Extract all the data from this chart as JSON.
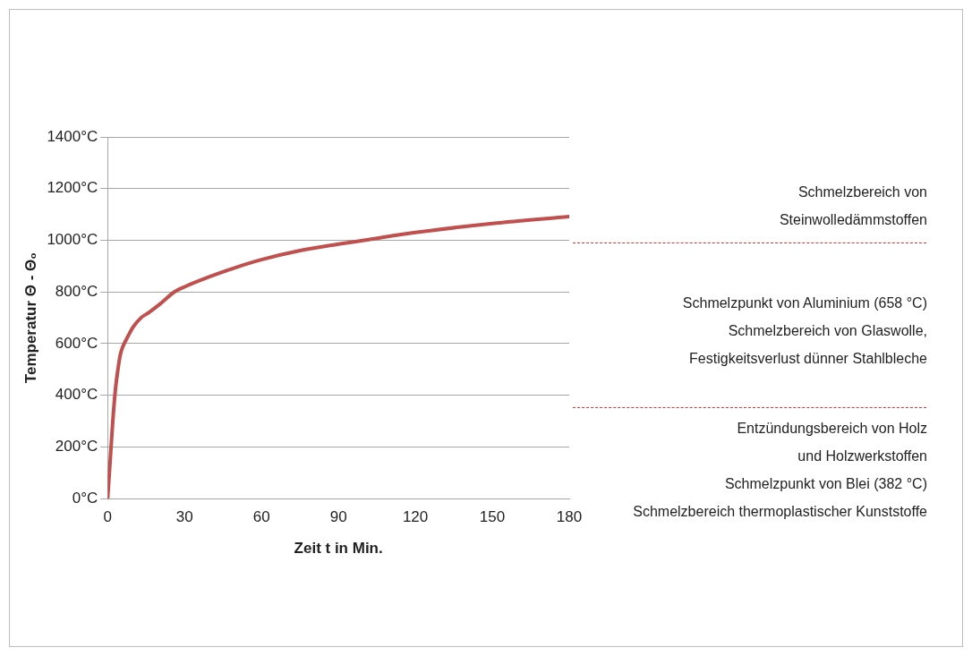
{
  "chart_data": {
    "type": "line",
    "xlabel": "Zeit t in Min.",
    "ylabel": "Temperatur Θ - Θ₀",
    "x": [
      0,
      1,
      2,
      3,
      4,
      5,
      6,
      8,
      10,
      13,
      16,
      20,
      26,
      30,
      40,
      50,
      60,
      75,
      90,
      100,
      120,
      150,
      180
    ],
    "series": [
      {
        "color": "#c0504d",
        "values": [
          0,
          150,
          300,
          420,
          500,
          560,
          590,
          630,
          665,
          700,
          720,
          750,
          800,
          820,
          860,
          895,
          925,
          960,
          985,
          1000,
          1030,
          1065,
          1092
        ]
      }
    ],
    "xlim": [
      0,
      180
    ],
    "xticks": [
      0,
      30,
      60,
      90,
      120,
      150,
      180
    ],
    "ylim": [
      0,
      1400
    ],
    "yticks": [
      {
        "value": 0,
        "label": "0°C"
      },
      {
        "value": 200,
        "label": "200°C"
      },
      {
        "value": 400,
        "label": "400°C"
      },
      {
        "value": 600,
        "label": "600°C"
      },
      {
        "value": 800,
        "label": "800°C"
      },
      {
        "value": 1000,
        "label": "1000°C"
      },
      {
        "value": 1200,
        "label": "1200°C"
      },
      {
        "value": 1400,
        "label": "1400°C"
      }
    ],
    "grid": "y",
    "marker": "none",
    "line_style": "solid",
    "legend": false,
    "annotations": [
      "Schmelzbereich von\nSteinwolledämmstoffen",
      "Schmelzpunkt von Aluminium (658 °C)\nSchmelzbereich von Glaswolle,\nFestigkeitsverlust dünner Stahlbleche",
      "Entzündungsbereich von Holz\nund Holzwerkstoffen\nSchmelzpunkt von Blei (382 °C)\nSchmelzbereich thermoplastischer Kunststoffe"
    ]
  }
}
